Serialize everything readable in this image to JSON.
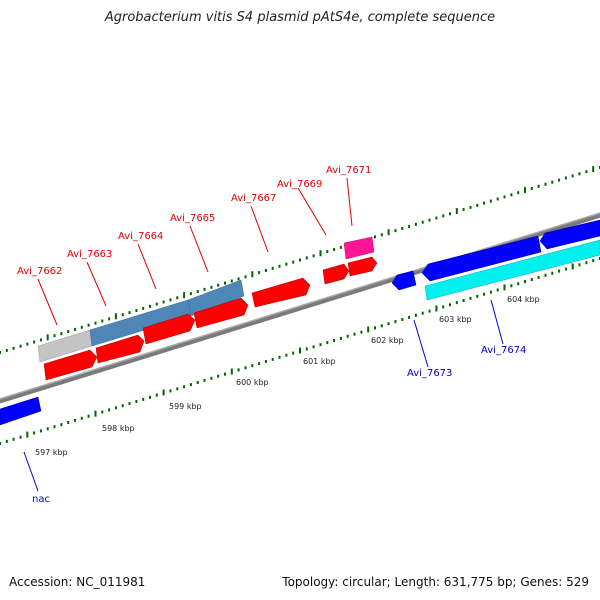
{
  "title": "Agrobacterium vitis S4 plasmid pAtS4e, complete sequence",
  "footer": {
    "accession": "Accession: NC_011981",
    "summary": "Topology: circular; Length: 631,775 bp; Genes: 529"
  },
  "scale_labels": [
    "597 kbp",
    "598 kbp",
    "599 kbp",
    "600 kbp",
    "601 kbp",
    "602 kbp",
    "603 kbp",
    "604 kbp"
  ],
  "gene_labels": {
    "forward": [
      "Avi_7662",
      "Avi_7663",
      "Avi_7664",
      "Avi_7665",
      "Avi_7667",
      "Avi_7669",
      "Avi_7671"
    ],
    "reverse": [
      "Avi_7673",
      "Avi_7674",
      "nac"
    ]
  },
  "colors": {
    "forward_gene": "#ff0000",
    "reverse_gene": "#0000ff",
    "trna_pink": "#ff1493",
    "cyan_feature": "#00ffff",
    "steelblue_feature": "#4682b4",
    "gray_feature": "#c0c0c0",
    "tick_green": "#006400",
    "backbone": "#808080"
  }
}
